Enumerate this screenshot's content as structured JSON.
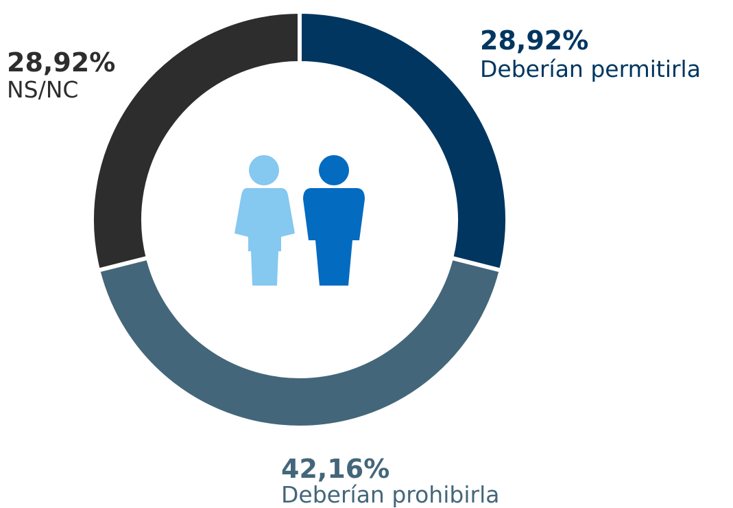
{
  "chart_data": {
    "type": "donut",
    "categories": [
      "Deberían permitirla",
      "Deberían prohibirla",
      "NS/NC"
    ],
    "values": [
      28.92,
      42.16,
      28.92
    ],
    "value_labels": [
      "28,92%",
      "42,16%",
      "28,92%"
    ],
    "colors": [
      "#003660",
      "#44667a",
      "#2d2d2d"
    ]
  }
}
